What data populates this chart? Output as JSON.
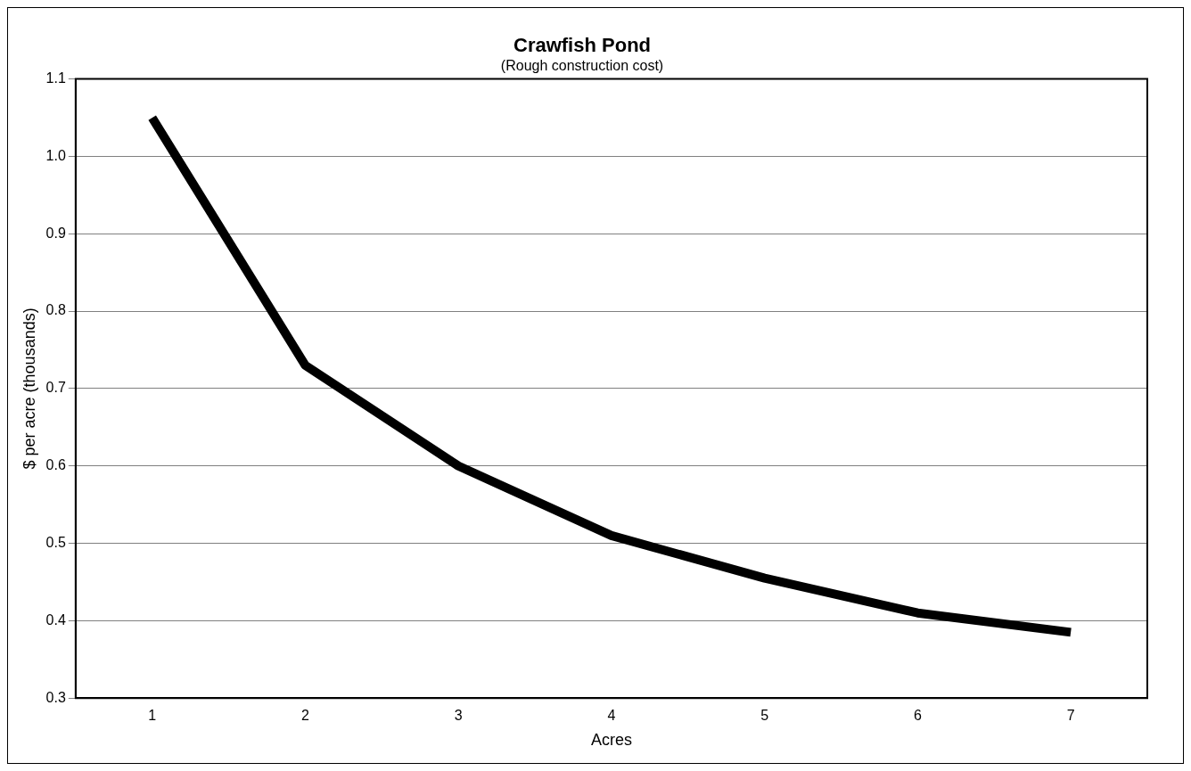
{
  "chart_data": {
    "type": "line",
    "title": "Crawfish Pond",
    "subtitle": "(Rough construction cost)",
    "xlabel": "Acres",
    "ylabel": "$ per acre (thousands)",
    "categories": [
      "1",
      "2",
      "3",
      "4",
      "5",
      "6",
      "7"
    ],
    "series": [
      {
        "color": "#000000",
        "values": [
          1.05,
          0.73,
          0.6,
          0.51,
          0.455,
          0.41,
          0.385
        ]
      }
    ],
    "ylim": [
      0.3,
      1.1
    ],
    "yticks": [
      {
        "value": 0.3,
        "label": "0.3"
      },
      {
        "value": 0.4,
        "label": "0.4"
      },
      {
        "value": 0.5,
        "label": "0.5"
      },
      {
        "value": 0.6,
        "label": "0.6"
      },
      {
        "value": 0.7,
        "label": "0.7"
      },
      {
        "value": 0.8,
        "label": "0.8"
      },
      {
        "value": 0.9,
        "label": "0.9"
      },
      {
        "value": 1.0,
        "label": "1.0"
      },
      {
        "value": 1.1,
        "label": "1.1"
      }
    ],
    "grid": "y",
    "legend": false,
    "marker": "none",
    "line_style": "solid"
  }
}
